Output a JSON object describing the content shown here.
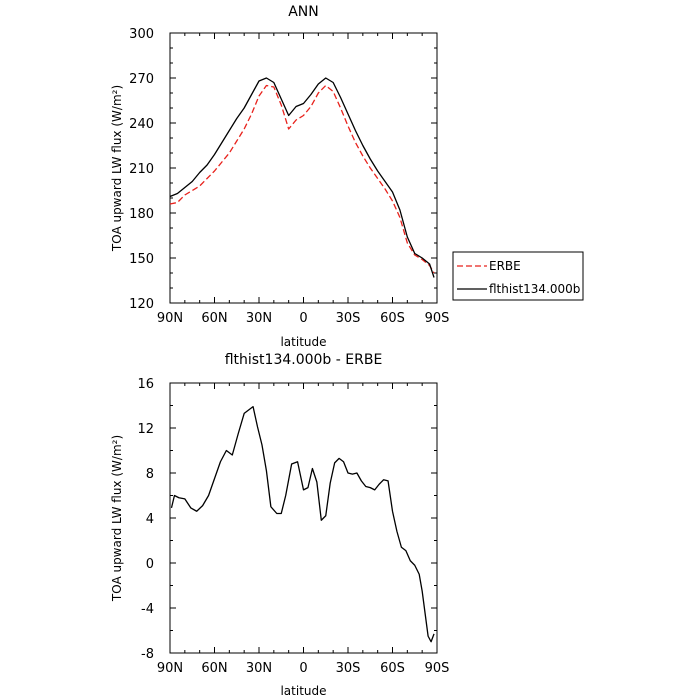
{
  "chart_data": [
    {
      "type": "line",
      "title": "ANN",
      "xlabel": "latitude",
      "ylabel": "TOA upward LW flux (W/m²)",
      "xlim": [
        90,
        -90
      ],
      "ylim": [
        120,
        300
      ],
      "xticks": [
        90,
        60,
        30,
        0,
        -30,
        -60,
        -90
      ],
      "xtick_labels": [
        "90N",
        "60N",
        "30N",
        "0",
        "30S",
        "60S",
        "90S"
      ],
      "yticks": [
        120,
        150,
        180,
        210,
        240,
        270,
        300
      ],
      "ytick_labels": [
        "120",
        "150",
        "180",
        "210",
        "240",
        "270",
        "300"
      ],
      "legend_position": "right",
      "series": [
        {
          "name": "ERBE",
          "color": "#e8221c",
          "dash": "dashed",
          "x": [
            90,
            85,
            80,
            75,
            70,
            65,
            60,
            55,
            50,
            45,
            40,
            35,
            30,
            25,
            20,
            15,
            10,
            5,
            0,
            -5,
            -10,
            -15,
            -20,
            -25,
            -30,
            -35,
            -40,
            -45,
            -50,
            -55,
            -60,
            -65,
            -70,
            -75,
            -80,
            -85,
            -88
          ],
          "y": [
            186,
            187,
            192,
            195,
            198,
            203,
            208,
            214,
            220,
            228,
            236,
            246,
            258,
            265,
            264,
            252,
            236,
            242,
            245,
            251,
            260,
            265,
            261,
            250,
            238,
            227,
            218,
            210,
            203,
            196,
            188,
            177,
            160,
            152,
            149,
            145,
            140
          ]
        },
        {
          "name": "flthist134.000b",
          "color": "#000000",
          "dash": "solid",
          "x": [
            90,
            85,
            80,
            75,
            70,
            65,
            60,
            55,
            50,
            45,
            40,
            35,
            30,
            25,
            20,
            15,
            10,
            5,
            0,
            -5,
            -10,
            -15,
            -20,
            -25,
            -30,
            -35,
            -40,
            -45,
            -50,
            -55,
            -60,
            -65,
            -70,
            -75,
            -80,
            -85,
            -88
          ],
          "y": [
            191,
            193,
            197,
            201,
            207,
            212,
            219,
            227,
            235,
            243,
            250,
            259,
            268,
            270,
            267,
            256,
            245,
            251,
            253,
            259,
            266,
            270,
            267,
            257,
            246,
            235,
            225,
            216,
            208,
            201,
            194,
            182,
            164,
            153,
            150,
            146,
            137
          ]
        }
      ]
    },
    {
      "type": "line",
      "title": "flthist134.000b - ERBE",
      "xlabel": "latitude",
      "ylabel": "TOA upward LW flux (W/m²)",
      "xlim": [
        90,
        -90
      ],
      "ylim": [
        -8,
        16
      ],
      "xticks": [
        90,
        60,
        30,
        0,
        -30,
        -60,
        -90
      ],
      "xtick_labels": [
        "90N",
        "60N",
        "30N",
        "0",
        "30S",
        "60S",
        "90S"
      ],
      "yticks": [
        -8,
        -4,
        0,
        4,
        8,
        12,
        16
      ],
      "ytick_labels": [
        "-8",
        "-4",
        "0",
        "4",
        "8",
        "12",
        "16"
      ],
      "series": [
        {
          "color": "#000000",
          "dash": "solid",
          "x": [
            89,
            87,
            84,
            80,
            76,
            72,
            68,
            64,
            60,
            56,
            52,
            48,
            44,
            40,
            37,
            34,
            31,
            28,
            25,
            22,
            18,
            15,
            12,
            8,
            4,
            0,
            -3,
            -6,
            -9,
            -12,
            -15,
            -18,
            -21,
            -24,
            -27,
            -30,
            -33,
            -36,
            -39,
            -42,
            -45,
            -48,
            -51,
            -54,
            -57,
            -60,
            -63,
            -66,
            -69,
            -72,
            -75,
            -78,
            -80,
            -82,
            -84,
            -86,
            -88
          ],
          "y": [
            4.9,
            6.0,
            5.8,
            5.7,
            4.9,
            4.6,
            5.1,
            6.0,
            7.5,
            9.0,
            10.0,
            9.6,
            11.5,
            13.3,
            13.6,
            13.9,
            12.1,
            10.5,
            8.2,
            5.0,
            4.4,
            4.4,
            6.0,
            8.8,
            9.0,
            6.5,
            6.7,
            8.4,
            7.2,
            3.8,
            4.2,
            7.1,
            8.9,
            9.3,
            9.0,
            8.0,
            7.9,
            8.0,
            7.3,
            6.8,
            6.7,
            6.5,
            7.0,
            7.4,
            7.3,
            4.6,
            2.8,
            1.4,
            1.1,
            0.2,
            -0.2,
            -1.0,
            -2.5,
            -4.5,
            -6.5,
            -7.0,
            -6.3
          ]
        }
      ]
    }
  ]
}
